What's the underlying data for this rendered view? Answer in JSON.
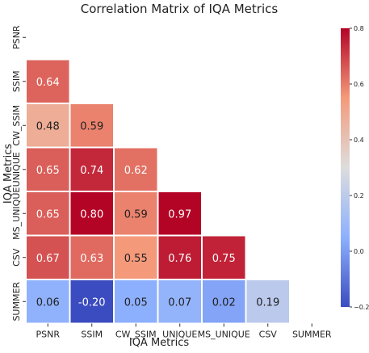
{
  "chart_data": {
    "type": "heatmap",
    "title": "Correlation Matrix of IQA Metrics",
    "xlabel": "IQA Metrics",
    "ylabel": "IQA Metrics",
    "x_tick_labels": [
      "PSNR",
      "SSIM",
      "CW_SSIM",
      "UNIQUE",
      "MS_UNIQUE",
      "CSV",
      "SUMMER"
    ],
    "y_tick_labels": [
      "PSNR",
      "SSIM",
      "CW_SSIM",
      "UNIQUE",
      "MS_UNIQUE",
      "CSV",
      "SUMMER"
    ],
    "mask": "upper-triangle-and-diagonal",
    "values": [
      [
        null,
        null,
        null,
        null,
        null,
        null,
        null
      ],
      [
        0.64,
        null,
        null,
        null,
        null,
        null,
        null
      ],
      [
        0.48,
        0.59,
        null,
        null,
        null,
        null,
        null
      ],
      [
        0.65,
        0.74,
        0.62,
        null,
        null,
        null,
        null
      ],
      [
        0.65,
        0.8,
        0.59,
        0.97,
        null,
        null,
        null
      ],
      [
        0.67,
        0.63,
        0.55,
        0.76,
        0.75,
        null,
        null
      ],
      [
        0.06,
        -0.2,
        0.05,
        0.07,
        0.02,
        0.19,
        null
      ]
    ],
    "value_labels": [
      [
        "",
        "",
        "",
        "",
        "",
        "",
        ""
      ],
      [
        "0.64",
        "",
        "",
        "",
        "",
        "",
        ""
      ],
      [
        "0.48",
        "0.59",
        "",
        "",
        "",
        "",
        ""
      ],
      [
        "0.65",
        "0.74",
        "0.62",
        "",
        "",
        "",
        ""
      ],
      [
        "0.65",
        "0.80",
        "0.59",
        "0.97",
        "",
        "",
        ""
      ],
      [
        "0.67",
        "0.63",
        "0.55",
        "0.76",
        "0.75",
        "",
        ""
      ],
      [
        "0.06",
        "-0.20",
        "0.05",
        "0.07",
        "0.02",
        "0.19",
        ""
      ]
    ],
    "colorscale": "coolwarm",
    "vmin": -0.2,
    "vmax": 0.8,
    "colorbar_ticks": [
      0.8,
      0.6,
      0.4,
      0.2,
      0.0,
      -0.2
    ],
    "colorbar_tick_labels": [
      "0.8",
      "0.6",
      "0.4",
      "0.2",
      "0.0",
      "−0.2"
    ]
  }
}
